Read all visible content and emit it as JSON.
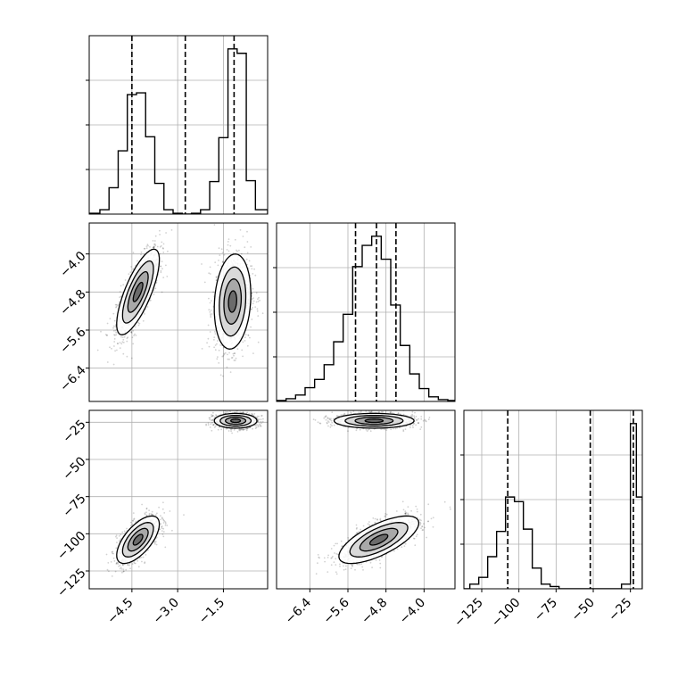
{
  "chart_data": {
    "type": "corner",
    "parameters": [
      "",
      "",
      ""
    ],
    "colors": {
      "line": "#000000",
      "grid": "#b0b0b0",
      "points": "#000000",
      "fill": "#555555"
    },
    "grid": true,
    "quantile_lines": "dashed",
    "ranges": {
      "p0": [
        -5.9,
        -0.05
      ],
      "p1": [
        -7.1,
        -3.35
      ],
      "p2": [
        -137,
        -17
      ]
    },
    "ticks": {
      "p0": [
        {
          "value": -4.5,
          "label": "−4.5"
        },
        {
          "value": -3.0,
          "label": "−3.0"
        },
        {
          "value": -1.5,
          "label": "−1.5"
        }
      ],
      "p1": [
        {
          "value": -6.4,
          "label": "−6.4"
        },
        {
          "value": -5.6,
          "label": "−5.6"
        },
        {
          "value": -4.8,
          "label": "−4.8"
        },
        {
          "value": -4.0,
          "label": "−4.0"
        }
      ],
      "p2": [
        {
          "value": -125,
          "label": "−125"
        },
        {
          "value": -100,
          "label": "−100"
        },
        {
          "value": -75,
          "label": "−75"
        },
        {
          "value": -50,
          "label": "−50"
        },
        {
          "value": -25,
          "label": "−25"
        }
      ]
    },
    "hist_p0": {
      "edges": [
        -5.9,
        -5.55,
        -5.25,
        -4.95,
        -4.65,
        -4.35,
        -4.05,
        -3.75,
        -3.45,
        -3.15,
        -2.85,
        -2.55,
        -2.25,
        -1.95,
        -1.65,
        -1.35,
        -1.05,
        -0.75,
        -0.45,
        -0.05
      ],
      "counts": [
        1,
        5,
        30,
        72,
        136,
        138,
        88,
        35,
        5,
        1,
        0,
        1,
        5,
        37,
        87,
        188,
        183,
        38,
        5
      ],
      "quantiles": [
        -4.5,
        -2.75,
        -1.15
      ]
    },
    "hist_p1": {
      "edges": [
        -7.1,
        -6.9,
        -6.7,
        -6.5,
        -6.3,
        -6.1,
        -5.9,
        -5.7,
        -5.5,
        -5.3,
        -5.1,
        -4.9,
        -4.7,
        -4.5,
        -4.3,
        -4.1,
        -3.9,
        -3.7,
        -3.5,
        -3.35
      ],
      "counts": [
        1,
        3,
        7,
        15,
        24,
        40,
        65,
        95,
        147,
        170,
        180,
        155,
        105,
        61,
        30,
        14,
        5,
        2,
        1
      ],
      "quantiles": [
        -5.44,
        -5.0,
        -4.59
      ]
    },
    "hist_p2": {
      "edges": [
        -137,
        -133,
        -127,
        -121,
        -115,
        -109,
        -103,
        -97,
        -91,
        -85,
        -79,
        -73,
        -37,
        -31,
        -25,
        -21,
        -17
      ],
      "counts": [
        0,
        2,
        5,
        14,
        25,
        40,
        38,
        26,
        9,
        2,
        1,
        0,
        0,
        2,
        72,
        40
      ],
      "quantiles": [
        -107.5,
        -52,
        -23
      ]
    },
    "clusters_p0_p1": [
      {
        "cx": -4.3,
        "cy": -4.8,
        "sx": 0.35,
        "sy": 0.45,
        "rho": 0.75,
        "n": 1100
      },
      {
        "cx": -1.2,
        "cy": -5.0,
        "sx": 0.3,
        "sy": 0.5,
        "rho": 0.15,
        "n": 1100
      }
    ],
    "clusters_p0_p2": [
      {
        "cx": -4.3,
        "cy": -104,
        "sx": 0.35,
        "sy": 8,
        "rho": 0.65,
        "n": 1100
      },
      {
        "cx": -1.1,
        "cy": -24,
        "sx": 0.35,
        "sy": 2.5,
        "rho": 0.0,
        "n": 1100
      }
    ],
    "clusters_p1_p2": [
      {
        "cx": -4.95,
        "cy": -104,
        "sx": 0.42,
        "sy": 8,
        "rho": 0.7,
        "n": 1100
      },
      {
        "cx": -5.05,
        "cy": -24,
        "sx": 0.42,
        "sy": 2.5,
        "rho": 0.0,
        "n": 1100
      }
    ]
  }
}
